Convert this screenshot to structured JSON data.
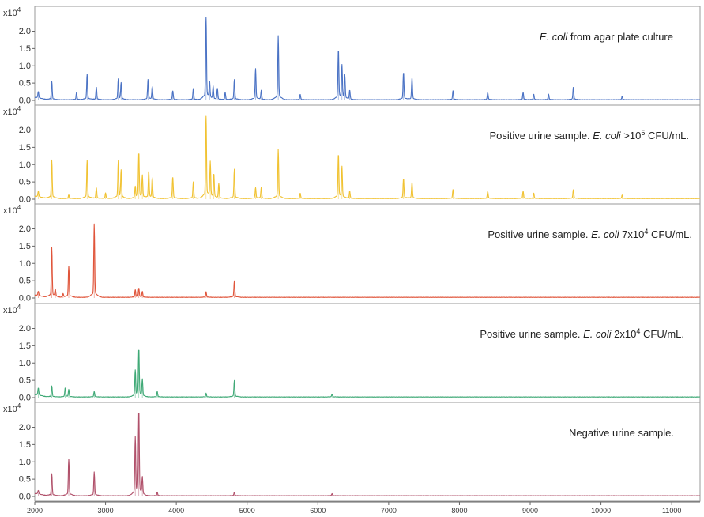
{
  "chart_data": [
    {
      "type": "line",
      "title": "E. coli from agar plate culture",
      "title_parts": [
        {
          "text": "E. coli",
          "italic": true
        },
        {
          "text": " from agar plate culture"
        }
      ],
      "color": "#4a72c4",
      "y_multiplier": "x10",
      "y_multiplier_exp": "4",
      "ylim": [
        0,
        2.4
      ],
      "yticks": [
        "0.0",
        "0.5",
        "1.0",
        "1.5",
        "2.0"
      ],
      "peaks": [
        [
          2050,
          0.18
        ],
        [
          2240,
          0.5
        ],
        [
          2590,
          0.2
        ],
        [
          2740,
          0.7
        ],
        [
          2870,
          0.35
        ],
        [
          3180,
          0.55
        ],
        [
          3220,
          0.45
        ],
        [
          3600,
          0.55
        ],
        [
          3660,
          0.35
        ],
        [
          3950,
          0.25
        ],
        [
          4240,
          0.3
        ],
        [
          4420,
          2.35
        ],
        [
          4470,
          0.45
        ],
        [
          4520,
          0.35
        ],
        [
          4580,
          0.3
        ],
        [
          4690,
          0.2
        ],
        [
          4820,
          0.55
        ],
        [
          5120,
          0.85
        ],
        [
          5200,
          0.25
        ],
        [
          5440,
          1.75
        ],
        [
          5750,
          0.15
        ],
        [
          6290,
          1.35
        ],
        [
          6340,
          0.9
        ],
        [
          6380,
          0.65
        ],
        [
          6450,
          0.25
        ],
        [
          7210,
          0.75
        ],
        [
          7330,
          0.6
        ],
        [
          7910,
          0.25
        ],
        [
          8400,
          0.2
        ],
        [
          8900,
          0.2
        ],
        [
          9050,
          0.15
        ],
        [
          9260,
          0.15
        ],
        [
          9610,
          0.35
        ],
        [
          10300,
          0.1
        ]
      ]
    },
    {
      "type": "line",
      "title": "Positive urine sample. E. coli >10^5 CFU/mL.",
      "title_parts": [
        {
          "text": "Positive urine sample. "
        },
        {
          "text": "E. coli",
          "italic": true
        },
        {
          "text": " >10"
        },
        {
          "text": "5",
          "sup": true
        },
        {
          "text": " CFU/mL."
        }
      ],
      "color": "#f1c232",
      "y_multiplier": "x10",
      "y_multiplier_exp": "4",
      "ylim": [
        0,
        2.4
      ],
      "yticks": [
        "0.0",
        "0.5",
        "1.0",
        "1.5",
        "2.0"
      ],
      "peaks": [
        [
          2050,
          0.15
        ],
        [
          2240,
          1.05
        ],
        [
          2480,
          0.1
        ],
        [
          2740,
          1.05
        ],
        [
          2870,
          0.3
        ],
        [
          3000,
          0.15
        ],
        [
          3180,
          1.0
        ],
        [
          3220,
          0.75
        ],
        [
          3420,
          0.3
        ],
        [
          3470,
          1.25
        ],
        [
          3520,
          0.6
        ],
        [
          3610,
          0.75
        ],
        [
          3660,
          0.55
        ],
        [
          3950,
          0.6
        ],
        [
          4240,
          0.45
        ],
        [
          4420,
          2.35
        ],
        [
          4480,
          0.95
        ],
        [
          4530,
          0.65
        ],
        [
          4600,
          0.4
        ],
        [
          4820,
          0.8
        ],
        [
          5120,
          0.3
        ],
        [
          5200,
          0.3
        ],
        [
          5440,
          1.35
        ],
        [
          5750,
          0.15
        ],
        [
          6290,
          1.2
        ],
        [
          6340,
          0.85
        ],
        [
          6450,
          0.2
        ],
        [
          7210,
          0.55
        ],
        [
          7330,
          0.45
        ],
        [
          7910,
          0.25
        ],
        [
          8400,
          0.2
        ],
        [
          8900,
          0.2
        ],
        [
          9050,
          0.15
        ],
        [
          9610,
          0.25
        ],
        [
          10300,
          0.1
        ]
      ]
    },
    {
      "type": "line",
      "title": "Positive urine sample. E. coli 7x10^4 CFU/mL.",
      "title_parts": [
        {
          "text": "Positive urine sample. "
        },
        {
          "text": "E. coli",
          "italic": true
        },
        {
          "text": " 7x10"
        },
        {
          "text": "4",
          "sup": true
        },
        {
          "text": " CFU/mL."
        }
      ],
      "color": "#e0553b",
      "y_multiplier": "x10",
      "y_multiplier_exp": "4",
      "ylim": [
        0,
        2.4
      ],
      "yticks": [
        "0.0",
        "0.5",
        "1.0",
        "1.5",
        "2.0"
      ],
      "peaks": [
        [
          2050,
          0.12
        ],
        [
          2240,
          1.35
        ],
        [
          2290,
          0.2
        ],
        [
          2400,
          0.1
        ],
        [
          2480,
          0.85
        ],
        [
          2840,
          2.0
        ],
        [
          3420,
          0.2
        ],
        [
          3470,
          0.25
        ],
        [
          3520,
          0.15
        ],
        [
          4420,
          0.15
        ],
        [
          4820,
          0.45
        ]
      ]
    },
    {
      "type": "line",
      "title": "Positive urine sample. E. coli 2x10^4 CFU/mL.",
      "title_parts": [
        {
          "text": "Positive urine sample. "
        },
        {
          "text": "E. coli",
          "italic": true
        },
        {
          "text": " 2x10"
        },
        {
          "text": "4",
          "sup": true
        },
        {
          "text": " CFU/mL."
        }
      ],
      "color": "#3fa976",
      "y_multiplier": "x10",
      "y_multiplier_exp": "4",
      "ylim": [
        0,
        2.4
      ],
      "yticks": [
        "0.0",
        "0.5",
        "1.0",
        "1.5",
        "2.0"
      ],
      "peaks": [
        [
          2050,
          0.2
        ],
        [
          2240,
          0.3
        ],
        [
          2430,
          0.25
        ],
        [
          2480,
          0.2
        ],
        [
          2840,
          0.15
        ],
        [
          3420,
          0.7
        ],
        [
          3470,
          1.3
        ],
        [
          3520,
          0.45
        ],
        [
          3730,
          0.15
        ],
        [
          4420,
          0.1
        ],
        [
          4820,
          0.45
        ],
        [
          6200,
          0.08
        ]
      ]
    },
    {
      "type": "line",
      "title": "Negative urine sample.",
      "title_parts": [
        {
          "text": "Negative urine sample."
        }
      ],
      "color": "#b0506a",
      "y_multiplier": "x10",
      "y_multiplier_exp": "4",
      "ylim": [
        0,
        2.4
      ],
      "yticks": [
        "0.0",
        "0.5",
        "1.0",
        "1.5",
        "2.0"
      ],
      "peaks": [
        [
          2050,
          0.1
        ],
        [
          2240,
          0.6
        ],
        [
          2480,
          1.0
        ],
        [
          2840,
          0.65
        ],
        [
          3420,
          1.55
        ],
        [
          3470,
          2.35
        ],
        [
          3520,
          0.45
        ],
        [
          3730,
          0.1
        ],
        [
          4820,
          0.1
        ],
        [
          6200,
          0.06
        ]
      ]
    }
  ],
  "x_axis": {
    "xlim": [
      2000,
      11400
    ],
    "ticks": [
      2000,
      3000,
      4000,
      5000,
      6000,
      7000,
      8000,
      9000,
      10000,
      11000
    ]
  }
}
